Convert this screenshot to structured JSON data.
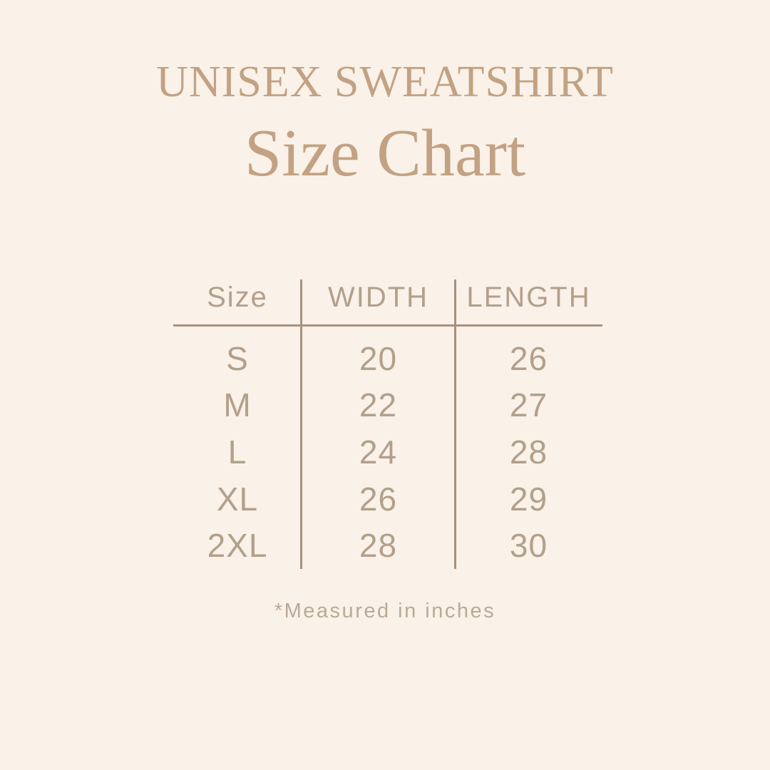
{
  "colors": {
    "background": "#FAF1E8",
    "title_accent": "#C2A283",
    "table_text": "#B2A08B",
    "divider_line": "#A6927F",
    "footnote_text": "#BCA996"
  },
  "header": {
    "eyebrow": "UNISEX SWEATSHIRT",
    "title": "Size Chart"
  },
  "table": {
    "headers": [
      "Size",
      "WIDTH",
      "LENGTH"
    ],
    "rows": [
      {
        "size": "S",
        "width": "20",
        "length": "26"
      },
      {
        "size": "M",
        "width": "22",
        "length": "27"
      },
      {
        "size": "L",
        "width": "24",
        "length": "28"
      },
      {
        "size": "XL",
        "width": "26",
        "length": "29"
      },
      {
        "size": "2XL",
        "width": "28",
        "length": "30"
      }
    ]
  },
  "footnote": "*Measured in inches",
  "chart_data": {
    "type": "table",
    "title": "Size Chart",
    "subtitle": "UNISEX SWEATSHIRT",
    "columns": [
      "Size",
      "WIDTH",
      "LENGTH"
    ],
    "rows": [
      [
        "S",
        20,
        26
      ],
      [
        "M",
        22,
        27
      ],
      [
        "L",
        24,
        28
      ],
      [
        "XL",
        26,
        29
      ],
      [
        "2XL",
        28,
        30
      ]
    ],
    "note": "*Measured in inches",
    "layout": {
      "grid": "off",
      "column_dividers": true,
      "header_rule": true
    }
  }
}
